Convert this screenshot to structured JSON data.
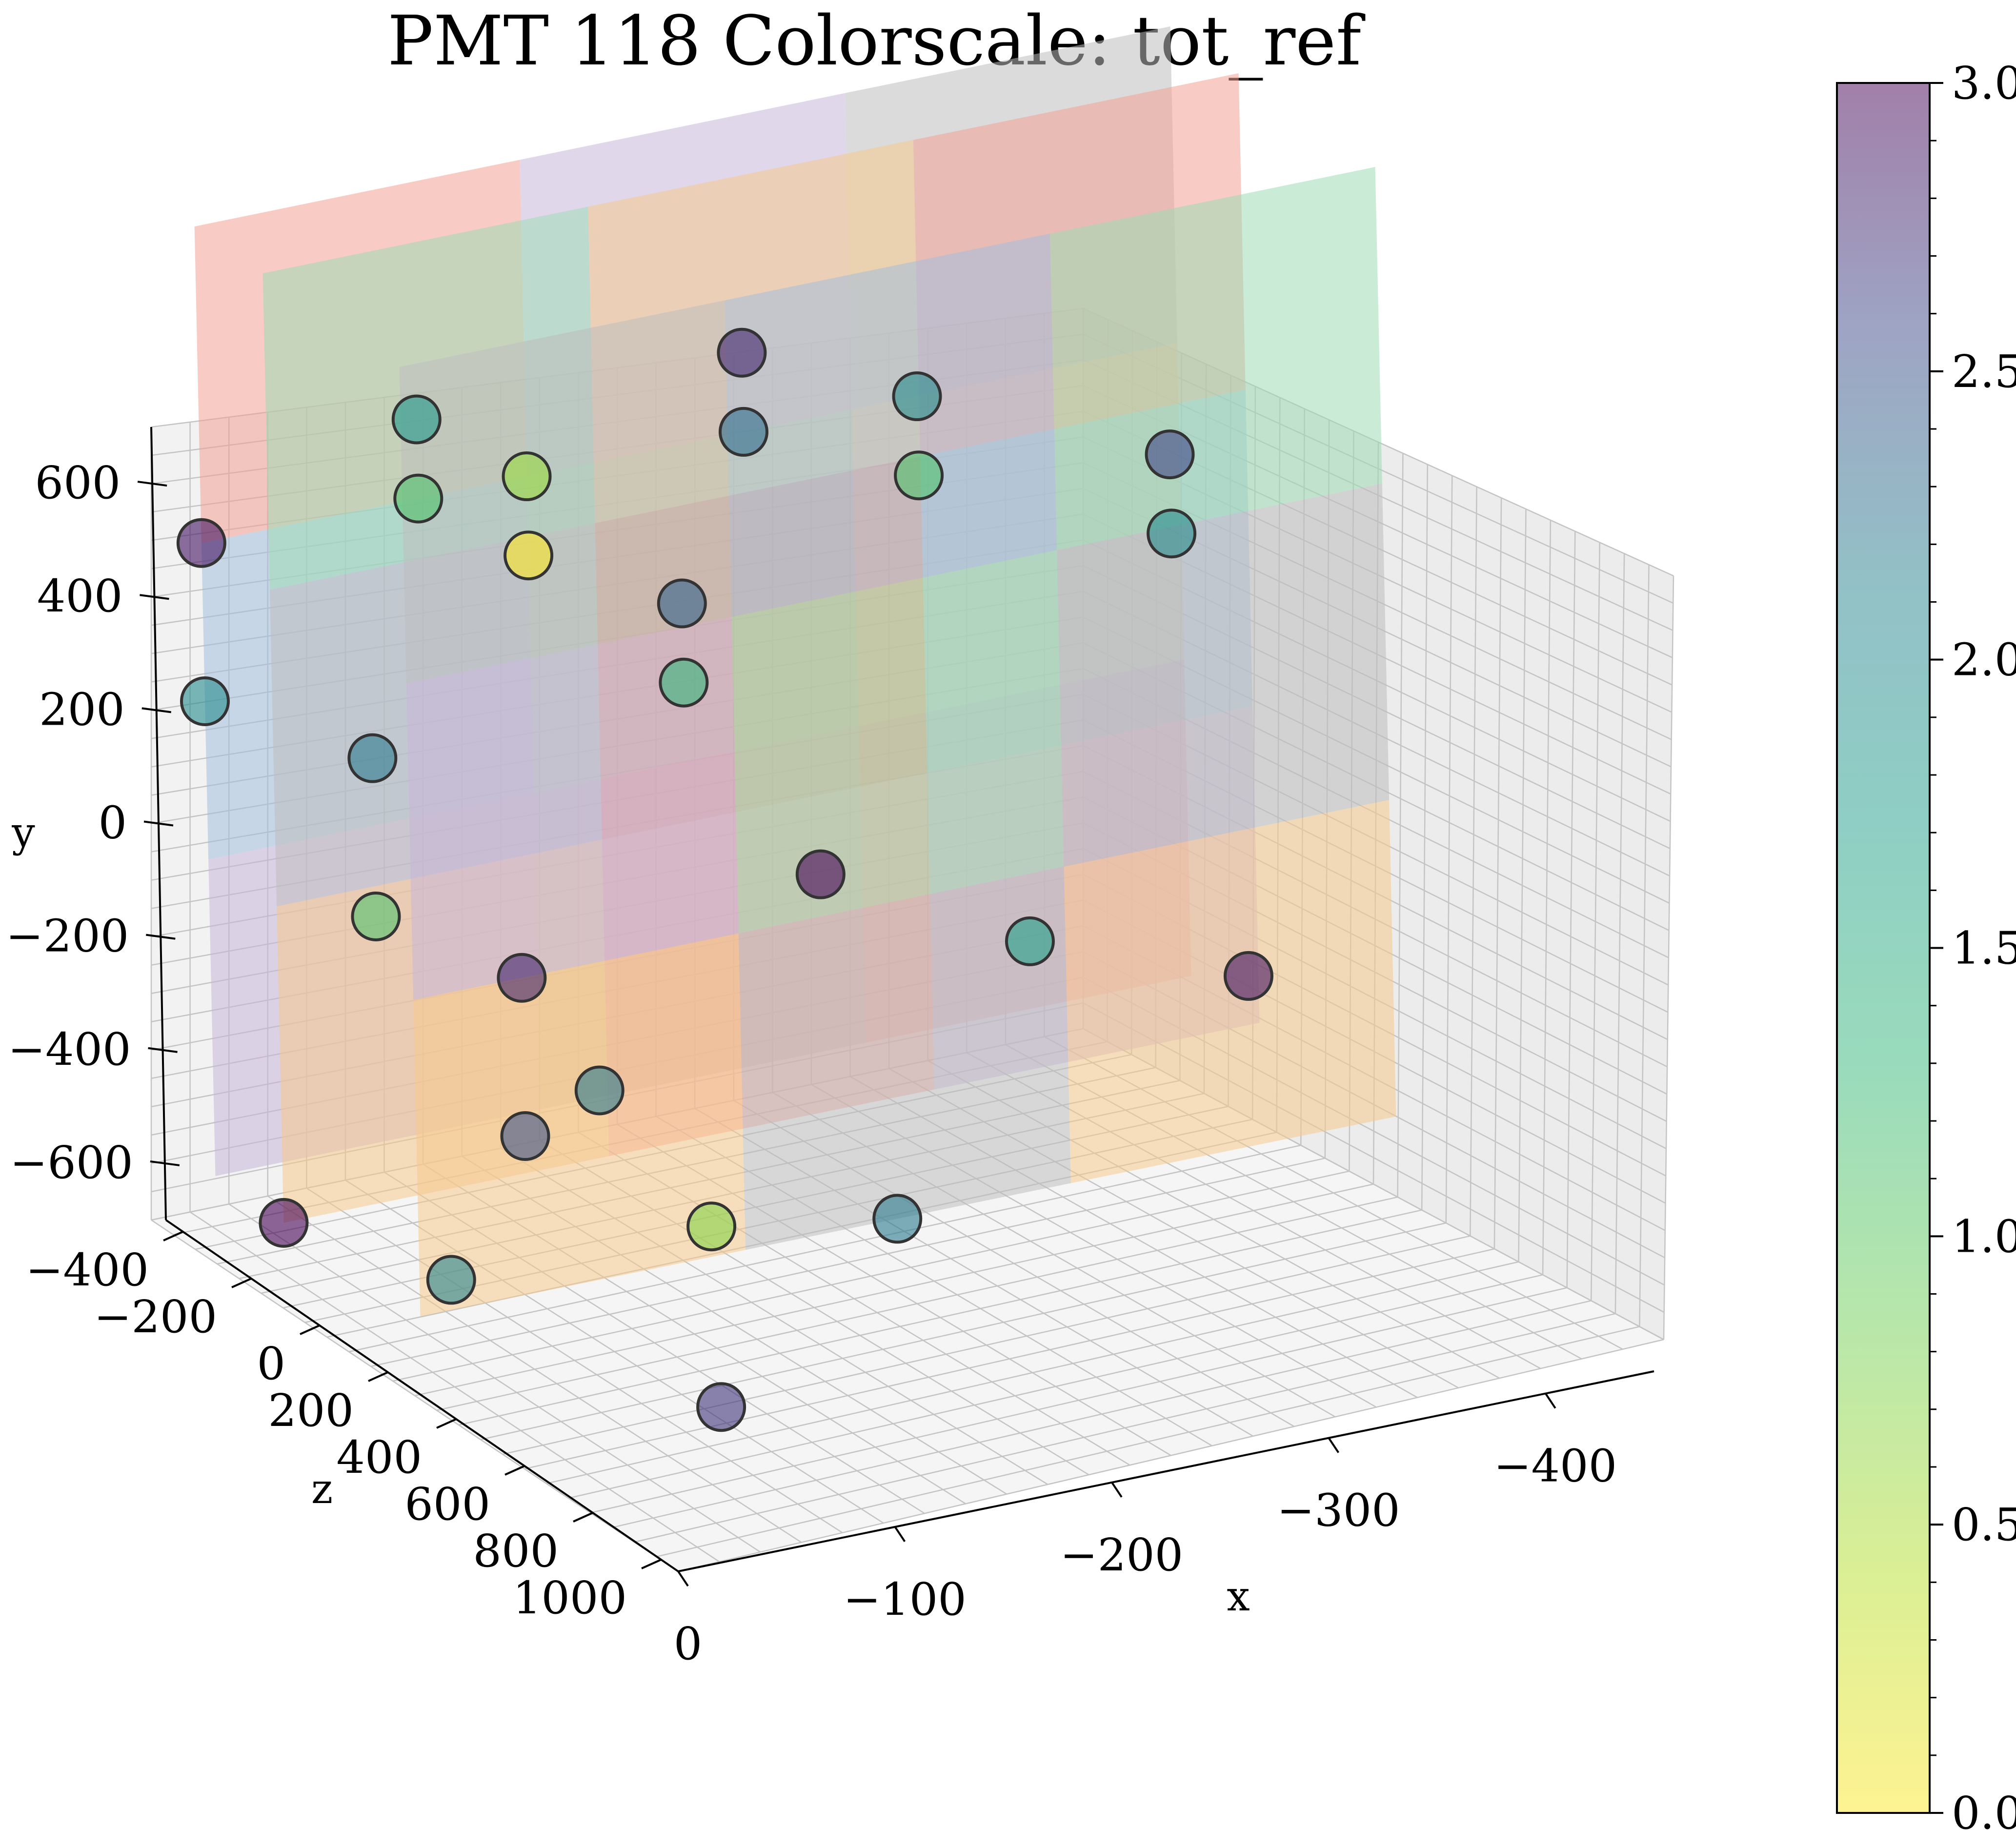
{
  "chart_data": {
    "type": "scatter",
    "title": "PMT 118 Colorscale: tot_ref",
    "xlabel": "x",
    "ylabel": "y",
    "zlabel": "z",
    "x_ticks": [
      "0",
      "−100",
      "−200",
      "−300",
      "−400"
    ],
    "y_ticks": [
      "600",
      "400",
      "200",
      "0",
      "−200",
      "−400",
      "−600"
    ],
    "z_ticks": [
      "−400",
      "−200",
      "0",
      "200",
      "400",
      "600",
      "800",
      "1000"
    ],
    "colorbar": {
      "label": "",
      "range": [
        0.0,
        3.0
      ],
      "ticks": [
        "0.0",
        "0.5",
        "1.0",
        "1.5",
        "2.0",
        "2.5",
        "3.0"
      ],
      "colormap": "viridis_r"
    },
    "panel_colors": [
      "#f4a096",
      "#c9b6d9",
      "#bdbdbd",
      "#a4bfdd",
      "#9fdcb4",
      "#f5c98c",
      "#f08a78"
    ],
    "points": [
      {
        "x": 0,
        "y": 200,
        "z": -300,
        "value": 2.9
      },
      {
        "x": 0,
        "y": 0,
        "z": -300,
        "value": 2.0
      },
      {
        "x": 0,
        "y": -600,
        "z": -100,
        "value": 3.0
      },
      {
        "x": -30,
        "y": 0,
        "z": 0,
        "value": 2.2
      },
      {
        "x": -30,
        "y": -200,
        "z": 0,
        "value": 1.1
      },
      {
        "x": -30,
        "y": -600,
        "z": 200,
        "value": 2.1
      },
      {
        "x": -50,
        "y": -200,
        "z": 300,
        "value": 2.8
      },
      {
        "x": -50,
        "y": -400,
        "z": 300,
        "value": 2.5
      },
      {
        "x": -60,
        "y": -600,
        "z": 800,
        "value": 2.7
      },
      {
        "x": -100,
        "y": 300,
        "z": -300,
        "value": 1.8
      },
      {
        "x": -100,
        "y": 200,
        "z": -300,
        "value": 1.1
      },
      {
        "x": -100,
        "y": -400,
        "z": 200,
        "value": 2.2
      },
      {
        "x": -150,
        "y": 200,
        "z": -300,
        "value": 0.6
      },
      {
        "x": -150,
        "y": 100,
        "z": -300,
        "value": 0.0
      },
      {
        "x": -150,
        "y": -600,
        "z": 200,
        "value": 0.7
      },
      {
        "x": -220,
        "y": 0,
        "z": -300,
        "value": 2.4
      },
      {
        "x": -220,
        "y": -100,
        "z": -300,
        "value": 1.3
      },
      {
        "x": -220,
        "y": -600,
        "z": 300,
        "value": 2.2
      },
      {
        "x": -250,
        "y": 300,
        "z": -300,
        "value": 2.8
      },
      {
        "x": -250,
        "y": 200,
        "z": -300,
        "value": 2.3
      },
      {
        "x": -250,
        "y": -300,
        "z": -100,
        "value": 3.0
      },
      {
        "x": -330,
        "y": 200,
        "z": -300,
        "value": 2.0
      },
      {
        "x": -330,
        "y": 100,
        "z": -300,
        "value": 1.1
      },
      {
        "x": -330,
        "y": -400,
        "z": 0,
        "value": 1.7
      },
      {
        "x": -430,
        "y": 100,
        "z": -200,
        "value": 2.6
      },
      {
        "x": -430,
        "y": 0,
        "z": -200,
        "value": 2.0
      },
      {
        "x": -430,
        "y": -500,
        "z": 0,
        "value": 2.9
      }
    ]
  }
}
